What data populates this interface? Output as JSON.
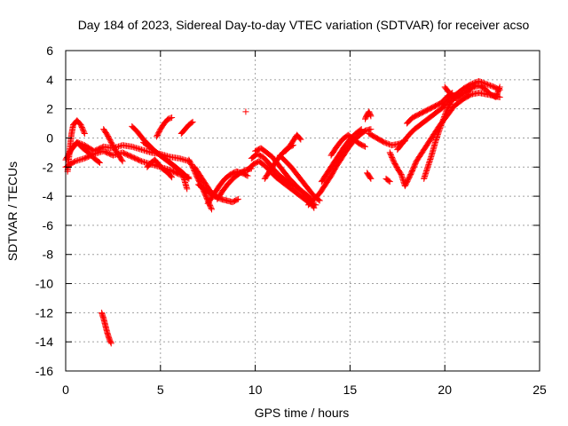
{
  "chart_data": {
    "type": "scatter",
    "title": "Day 184 of 2023, Sidereal Day-to-day VTEC variation (SDTVAR) for receiver acso",
    "xlabel": "GPS time / hours",
    "ylabel": "SDTVAR / TECUs",
    "xlim": [
      0,
      25
    ],
    "ylim": [
      -16,
      6
    ],
    "xticks": [
      0,
      5,
      10,
      15,
      20,
      25
    ],
    "yticks": [
      -16,
      -14,
      -12,
      -10,
      -8,
      -6,
      -4,
      -2,
      0,
      2,
      4,
      6
    ],
    "xtick_labels": [
      "0",
      "5",
      "10",
      "15",
      "20",
      "25"
    ],
    "ytick_labels": [
      "-16",
      "-14",
      "-12",
      "-10",
      "-8",
      "-6",
      "-4",
      "-2",
      "0",
      "2",
      "4",
      "6"
    ],
    "grid": true,
    "marker": "plus",
    "color": "#ff0000",
    "series": [
      {
        "name": "SDTVAR",
        "segments": [
          {
            "x": [
              0.0,
              0.3,
              0.6,
              1.0,
              1.5,
              2.0,
              2.5,
              3.0,
              3.5,
              4.0,
              4.5,
              5.0,
              5.5,
              6.0,
              6.5
            ],
            "y": [
              -1.5,
              -0.8,
              -0.3,
              -0.5,
              -0.9,
              -0.6,
              -0.7,
              -0.5,
              -0.6,
              -0.8,
              -1.0,
              -1.1,
              -1.3,
              -1.4,
              -1.6
            ]
          },
          {
            "x": [
              0.0,
              0.5,
              1.0,
              1.5,
              2.0,
              2.5,
              3.0,
              3.5,
              4.0,
              4.5,
              5.0,
              5.5,
              6.0,
              6.5
            ],
            "y": [
              -2.0,
              -1.6,
              -1.4,
              -1.1,
              -0.9,
              -1.2,
              -1.0,
              -1.3,
              -1.6,
              -1.8,
              -2.0,
              -2.2,
              -2.5,
              -2.7
            ]
          },
          {
            "x": [
              0.1,
              0.2,
              0.3,
              0.4,
              0.6,
              0.8,
              1.0
            ],
            "y": [
              -2.3,
              -1.0,
              0.2,
              0.9,
              1.2,
              0.9,
              0.3
            ]
          },
          {
            "x": [
              0.4,
              0.6,
              0.9,
              1.2,
              1.5,
              1.8
            ],
            "y": [
              -0.6,
              -0.3,
              -0.7,
              -1.0,
              -1.4,
              -1.7
            ]
          },
          {
            "x": [
              2.0,
              2.2,
              2.4,
              2.6,
              2.8,
              3.0
            ],
            "y": [
              0.6,
              0.2,
              -0.3,
              -0.8,
              -1.2,
              -1.6
            ]
          },
          {
            "x": [
              3.5,
              3.8,
              4.1,
              4.4,
              4.7,
              5.0,
              5.4,
              5.8,
              6.2,
              6.4
            ],
            "y": [
              0.8,
              0.4,
              -0.1,
              -0.5,
              -0.9,
              -1.2,
              -1.6,
              -2.0,
              -2.6,
              -3.5
            ]
          },
          {
            "x": [
              4.1,
              4.5,
              4.9,
              5.3,
              5.7,
              6.1,
              6.5
            ],
            "y": [
              -0.3,
              -0.7,
              -1.1,
              -1.5,
              -1.9,
              -2.3,
              -2.8
            ]
          },
          {
            "x": [
              4.3,
              4.5,
              4.7,
              4.9,
              5.1,
              5.4,
              5.6
            ],
            "y": [
              -2.0,
              -1.7,
              -1.5,
              -1.8,
              -2.1,
              -2.4,
              -2.7
            ]
          },
          {
            "x": [
              4.8,
              5.0,
              5.2,
              5.4,
              5.6
            ],
            "y": [
              0.1,
              0.6,
              1.0,
              1.3,
              1.4
            ]
          },
          {
            "x": [
              6.1,
              6.3,
              6.5,
              6.7
            ],
            "y": [
              0.3,
              0.6,
              0.9,
              1.1
            ]
          },
          {
            "x": [
              6.5,
              6.7,
              6.9,
              7.2,
              7.5,
              7.7
            ],
            "y": [
              -1.5,
              -2.0,
              -2.6,
              -3.4,
              -4.3,
              -4.9
            ]
          },
          {
            "x": [
              6.8,
              7.0,
              7.2,
              7.4,
              7.6,
              7.8,
              8.0
            ],
            "y": [
              -2.0,
              -2.4,
              -2.8,
              -3.2,
              -3.6,
              -3.9,
              -4.1
            ]
          },
          {
            "x": [
              7.0,
              7.3,
              7.6,
              7.9,
              8.2,
              8.5,
              8.8,
              9.1
            ],
            "y": [
              -3.2,
              -3.5,
              -3.8,
              -4.0,
              -4.2,
              -4.3,
              -4.4,
              -4.2
            ]
          },
          {
            "x": [
              7.5,
              7.8,
              8.1,
              8.4,
              8.7,
              9.0,
              9.3,
              9.6
            ],
            "y": [
              -4.5,
              -3.9,
              -3.3,
              -2.8,
              -2.5,
              -2.3,
              -2.4,
              -2.6
            ]
          },
          {
            "x": [
              8.0,
              8.3,
              8.6,
              8.9,
              9.2,
              9.5,
              9.8
            ],
            "y": [
              -4.2,
              -3.6,
              -3.1,
              -2.7,
              -2.4,
              -2.2,
              -2.1
            ]
          },
          {
            "x": [
              9.5
            ],
            "y": [
              1.8
            ]
          },
          {
            "x": [
              9.6,
              9.9,
              10.2,
              10.5,
              10.8,
              11.1,
              11.4,
              11.7,
              12.0,
              12.3,
              12.6,
              12.9,
              13.2
            ],
            "y": [
              -2.2,
              -1.8,
              -1.6,
              -1.9,
              -2.3,
              -2.7,
              -3.0,
              -3.3,
              -3.6,
              -3.9,
              -4.2,
              -4.5,
              -4.6
            ]
          },
          {
            "x": [
              9.8,
              10.1,
              10.4,
              10.7,
              11.0,
              11.3,
              11.6,
              11.9,
              12.2,
              12.5,
              12.8,
              13.1
            ],
            "y": [
              -1.4,
              -1.1,
              -1.3,
              -1.7,
              -2.2,
              -2.6,
              -2.9,
              -3.2,
              -3.4,
              -3.7,
              -4.1,
              -4.8
            ]
          },
          {
            "x": [
              10.0,
              10.3,
              10.6,
              10.9,
              11.2,
              11.5,
              11.8,
              12.1,
              12.4,
              12.7,
              13.0
            ],
            "y": [
              -0.9,
              -0.7,
              -1.0,
              -1.3,
              -1.8,
              -2.3,
              -2.8,
              -3.2,
              -3.6,
              -3.9,
              -4.3
            ]
          },
          {
            "x": [
              10.5,
              10.7,
              10.9,
              11.1,
              11.4,
              11.7,
              12.0
            ],
            "y": [
              -2.8,
              -2.4,
              -2.0,
              -1.6,
              -1.1,
              -0.7,
              -0.5
            ]
          },
          {
            "x": [
              11.3,
              11.6,
              11.9,
              12.2,
              12.5,
              12.8,
              13.1,
              13.4
            ],
            "y": [
              -1.2,
              -1.6,
              -2.0,
              -2.5,
              -3.0,
              -3.5,
              -4.0,
              -4.3
            ]
          },
          {
            "x": [
              11.6,
              11.8,
              12.0,
              12.2,
              12.4
            ],
            "y": [
              -0.9,
              -0.6,
              -0.2,
              0.2,
              -0.1
            ]
          },
          {
            "x": [
              12.8,
              13.1,
              13.4,
              13.7,
              14.0,
              14.3,
              14.6,
              14.9,
              15.2,
              15.5,
              15.8,
              16.1
            ],
            "y": [
              -4.6,
              -4.2,
              -3.8,
              -3.2,
              -2.6,
              -1.9,
              -1.3,
              -0.7,
              -0.2,
              0.2,
              0.5,
              0.6
            ]
          },
          {
            "x": [
              13.5,
              13.8,
              14.1,
              14.4,
              14.7,
              15.0,
              15.3,
              15.6
            ],
            "y": [
              -3.0,
              -2.4,
              -1.8,
              -1.2,
              -0.6,
              -0.1,
              0.3,
              0.6
            ]
          },
          {
            "x": [
              14.0,
              14.3,
              14.6,
              14.9,
              15.2,
              15.5,
              15.8
            ],
            "y": [
              -1.2,
              -0.6,
              -0.1,
              0.2,
              -0.1,
              -0.4,
              -0.6
            ]
          },
          {
            "x": [
              15.8,
              15.9,
              16.0,
              16.1
            ],
            "y": [
              1.3,
              1.6,
              1.8,
              1.5
            ]
          },
          {
            "x": [
              15.9,
              16.0,
              16.1
            ],
            "y": [
              -2.4,
              -2.6,
              -2.8
            ]
          },
          {
            "x": [
              16.0,
              16.4,
              16.8,
              17.2,
              17.6,
              17.9
            ],
            "y": [
              0.3,
              0.0,
              -0.3,
              -0.5,
              -0.4,
              -0.2
            ]
          },
          {
            "x": [
              16.9,
              17.1
            ],
            "y": [
              -2.8,
              -3.0
            ]
          },
          {
            "x": [
              17.1,
              17.3,
              17.5,
              17.7,
              17.9,
              18.2,
              18.5,
              18.9,
              19.3,
              19.7,
              20.1,
              20.5,
              21.0,
              21.4,
              21.8,
              22.2,
              22.6,
              22.9
            ],
            "y": [
              -1.0,
              -1.6,
              -2.1,
              -2.5,
              -3.3,
              -2.5,
              -1.6,
              -0.8,
              0.0,
              0.8,
              1.5,
              2.2,
              2.7,
              3.0,
              3.1,
              3.0,
              2.9,
              2.8
            ]
          },
          {
            "x": [
              17.5,
              17.8,
              18.1,
              18.4,
              18.7,
              19.0,
              19.3,
              19.6,
              19.9,
              20.2,
              20.6,
              21.0,
              21.4,
              21.8,
              22.2,
              22.6,
              22.9
            ],
            "y": [
              -0.8,
              -0.3,
              0.2,
              0.6,
              0.9,
              1.2,
              1.5,
              1.8,
              2.1,
              2.6,
              3.0,
              3.4,
              3.7,
              3.9,
              3.7,
              3.5,
              3.3
            ]
          },
          {
            "x": [
              18.0,
              18.3,
              18.6,
              18.9,
              19.2,
              19.5,
              19.8,
              20.1,
              20.4
            ],
            "y": [
              1.0,
              1.4,
              1.6,
              1.8,
              2.0,
              2.2,
              2.4,
              2.8,
              3.1
            ]
          },
          {
            "x": [
              18.9,
              19.1,
              19.3,
              19.5,
              19.7,
              19.9,
              20.1,
              20.3,
              20.5,
              20.7
            ],
            "y": [
              -2.8,
              -2.0,
              -1.2,
              -0.3,
              0.5,
              1.2,
              1.9,
              2.4,
              2.8,
              3.0
            ]
          },
          {
            "x": [
              20.0,
              20.3,
              20.6,
              20.9,
              21.2,
              21.5,
              21.8,
              22.1,
              22.4,
              22.7,
              22.9
            ],
            "y": [
              3.5,
              3.0,
              2.7,
              3.0,
              3.2,
              3.5,
              3.6,
              3.4,
              3.0,
              2.8,
              3.5
            ]
          },
          {
            "x": [
              1.9,
              2.0,
              2.1,
              2.2,
              2.3,
              2.4
            ],
            "y": [
              -12.0,
              -12.4,
              -12.9,
              -13.4,
              -13.8,
              -14.1
            ]
          }
        ]
      }
    ]
  }
}
